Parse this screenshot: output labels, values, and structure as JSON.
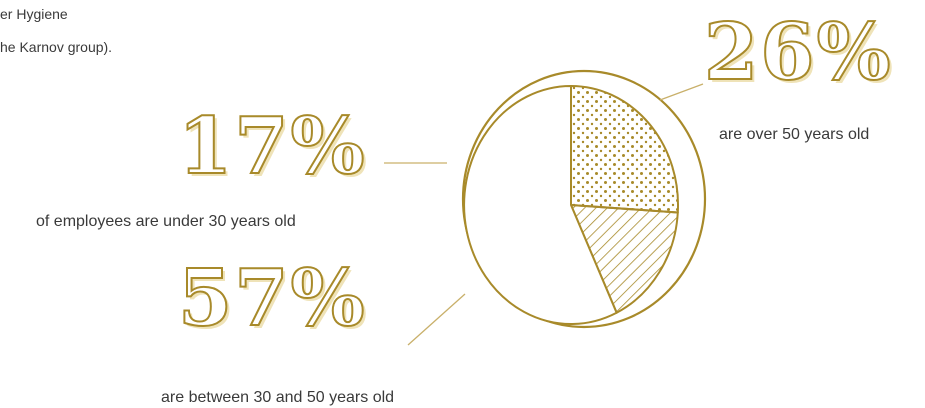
{
  "header_fragment": {
    "line1": "er Hygiene",
    "line2": "he Karnov group)."
  },
  "colors": {
    "gold": "#a88a2a",
    "gold_light": "#efe3b8",
    "text": "#3a3a3a"
  },
  "chart_data": {
    "type": "pie",
    "title": "",
    "slices": [
      {
        "label": "are over 50 years old",
        "value": 26,
        "display": "26%",
        "fill": "dots"
      },
      {
        "label": "of employees are under 30 years old",
        "value": 17,
        "display": "17%",
        "fill": "hatch"
      },
      {
        "label": "are between 30 and 50 years old",
        "value": 57,
        "display": "57%",
        "fill": "plain"
      }
    ]
  }
}
